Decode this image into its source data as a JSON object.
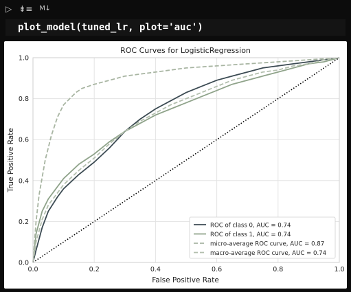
{
  "toolbar": {
    "run_icon": "play-icon",
    "run_icon_glyph": "▷",
    "run_below_icon": "run-cells-below-icon",
    "run_below_glyph": "⇟≡",
    "markdown_icon": "markdown-icon",
    "markdown_label": "M↓"
  },
  "cell": {
    "code": "plot_model(tuned_lr, plot='auc')"
  },
  "chart_data": {
    "type": "line",
    "title": "ROC Curves for LogisticRegression",
    "xlabel": "False Positive Rate",
    "ylabel": "True Positive Rate",
    "xlim": [
      0,
      1
    ],
    "ylim": [
      0,
      1
    ],
    "xticks": [
      "0.0",
      "0.2",
      "0.4",
      "0.6",
      "0.8",
      "1.0"
    ],
    "yticks": [
      "0.0",
      "0.2",
      "0.4",
      "0.6",
      "0.8",
      "1.0"
    ],
    "grid": true,
    "legend_position": "lower-right",
    "series": [
      {
        "name": "ROC of class 0, AUC = 0.74",
        "color": "#3b4a52",
        "style": "solid",
        "x": [
          0,
          0.01,
          0.03,
          0.05,
          0.08,
          0.1,
          0.15,
          0.2,
          0.25,
          0.3,
          0.35,
          0.4,
          0.45,
          0.5,
          0.55,
          0.6,
          0.65,
          0.7,
          0.75,
          0.8,
          0.85,
          0.9,
          0.95,
          1.0
        ],
        "y": [
          0,
          0.06,
          0.17,
          0.25,
          0.32,
          0.36,
          0.43,
          0.49,
          0.56,
          0.64,
          0.7,
          0.75,
          0.79,
          0.83,
          0.86,
          0.89,
          0.91,
          0.93,
          0.95,
          0.96,
          0.97,
          0.98,
          0.99,
          1.0
        ]
      },
      {
        "name": "ROC of class 1, AUC = 0.74",
        "color": "#8fa38a",
        "style": "solid",
        "x": [
          0,
          0.01,
          0.03,
          0.05,
          0.08,
          0.1,
          0.15,
          0.2,
          0.25,
          0.3,
          0.35,
          0.4,
          0.45,
          0.5,
          0.55,
          0.6,
          0.65,
          0.7,
          0.75,
          0.8,
          0.85,
          0.9,
          0.95,
          1.0
        ],
        "y": [
          0,
          0.14,
          0.25,
          0.31,
          0.37,
          0.41,
          0.48,
          0.53,
          0.59,
          0.64,
          0.68,
          0.72,
          0.75,
          0.78,
          0.81,
          0.84,
          0.87,
          0.89,
          0.91,
          0.93,
          0.95,
          0.97,
          0.98,
          1.0
        ]
      },
      {
        "name": "micro-average ROC curve, AUC = 0.87",
        "color": "#a8b5a2",
        "style": "dashed",
        "x": [
          0,
          0.01,
          0.02,
          0.04,
          0.06,
          0.08,
          0.1,
          0.12,
          0.14,
          0.16,
          0.2,
          0.25,
          0.3,
          0.35,
          0.4,
          0.5,
          0.6,
          0.7,
          0.8,
          0.9,
          1.0
        ],
        "y": [
          0,
          0.2,
          0.33,
          0.5,
          0.62,
          0.71,
          0.77,
          0.8,
          0.83,
          0.85,
          0.87,
          0.89,
          0.91,
          0.92,
          0.93,
          0.95,
          0.96,
          0.97,
          0.98,
          0.99,
          1.0
        ]
      },
      {
        "name": "macro-average ROC curve, AUC = 0.74",
        "color": "#b3bfae",
        "style": "dashed",
        "x": [
          0,
          0.01,
          0.03,
          0.05,
          0.08,
          0.1,
          0.15,
          0.2,
          0.25,
          0.3,
          0.35,
          0.4,
          0.45,
          0.5,
          0.55,
          0.6,
          0.65,
          0.7,
          0.75,
          0.8,
          0.85,
          0.9,
          0.95,
          1.0
        ],
        "y": [
          0,
          0.1,
          0.21,
          0.28,
          0.34,
          0.38,
          0.45,
          0.51,
          0.58,
          0.64,
          0.69,
          0.73,
          0.77,
          0.8,
          0.83,
          0.86,
          0.89,
          0.91,
          0.93,
          0.94,
          0.96,
          0.97,
          0.99,
          1.0
        ]
      },
      {
        "name": "",
        "color": "#000000",
        "style": "dotted",
        "x": [
          0,
          1
        ],
        "y": [
          0,
          1
        ]
      }
    ]
  }
}
